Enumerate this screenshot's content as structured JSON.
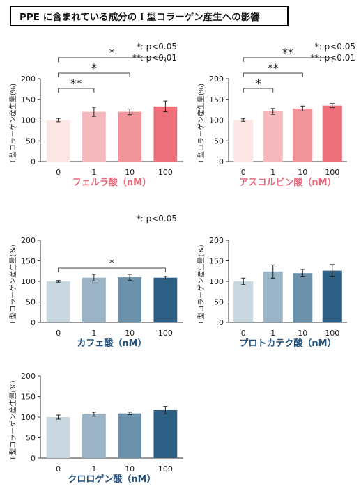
{
  "title": "PPE に含まれている成分の I 型コラーゲン産生への影響",
  "ylabel": "I 型コラーゲン産生量(%)",
  "chart_data": [
    {
      "type": "bar",
      "name": "chart-ferulic",
      "xlabel": "フェルラ酸（nM）",
      "categories": [
        "0",
        "1",
        "10",
        "100"
      ],
      "values": [
        100,
        120,
        120,
        133
      ],
      "errors": [
        4,
        11,
        7,
        13
      ],
      "ylim": [
        0,
        200
      ],
      "yticks": [
        0,
        50,
        100,
        150,
        200
      ],
      "colors": [
        "#fce6e6",
        "#f5b8bc",
        "#f0949a",
        "#ec6f79"
      ],
      "title_color": "#e8677a",
      "legend": [
        "*: p<0.05",
        "**: p<0.01"
      ],
      "brackets": [
        {
          "from": 0,
          "to": 1,
          "label": "**"
        },
        {
          "from": 0,
          "to": 2,
          "label": "*"
        },
        {
          "from": 0,
          "to": 3,
          "label": "*"
        }
      ]
    },
    {
      "type": "bar",
      "name": "chart-ascorbyl",
      "xlabel": "アスコルビン酸（nM）",
      "categories": [
        "0",
        "1",
        "10",
        "100"
      ],
      "values": [
        100,
        121,
        128,
        135
      ],
      "errors": [
        3,
        7,
        6,
        5
      ],
      "ylim": [
        0,
        200
      ],
      "yticks": [
        0,
        50,
        100,
        150,
        200
      ],
      "colors": [
        "#fce6e6",
        "#f5b8bc",
        "#f0949a",
        "#ec6f79"
      ],
      "title_color": "#e8677a",
      "legend": [
        "*: p<0.05",
        "**: p<0.01"
      ],
      "brackets": [
        {
          "from": 0,
          "to": 1,
          "label": "*"
        },
        {
          "from": 0,
          "to": 2,
          "label": "**"
        },
        {
          "from": 0,
          "to": 3,
          "label": "**"
        }
      ]
    },
    {
      "type": "bar",
      "name": "chart-caffeic",
      "xlabel": "カフェ酸（nM）",
      "categories": [
        "0",
        "1",
        "10",
        "100"
      ],
      "values": [
        100,
        109,
        110,
        109
      ],
      "errors": [
        2,
        8,
        7,
        3
      ],
      "ylim": [
        0,
        200
      ],
      "yticks": [
        0,
        50,
        100,
        150,
        200
      ],
      "colors": [
        "#c9d7e1",
        "#9ab3c5",
        "#6b91ab",
        "#2d5f85"
      ],
      "title_color": "#23507a",
      "legend": [
        "*: p<0.05"
      ],
      "brackets": [
        {
          "from": 0,
          "to": 3,
          "label": "*"
        }
      ]
    },
    {
      "type": "bar",
      "name": "chart-protocatechuic",
      "xlabel": "プロトカテク酸（nM）",
      "categories": [
        "0",
        "1",
        "10",
        "100"
      ],
      "values": [
        100,
        124,
        120,
        126
      ],
      "errors": [
        8,
        16,
        9,
        15
      ],
      "ylim": [
        0,
        200
      ],
      "yticks": [
        0,
        50,
        100,
        150,
        200
      ],
      "colors": [
        "#c9d7e1",
        "#9ab3c5",
        "#6b91ab",
        "#2d5f85"
      ],
      "title_color": "#23507a",
      "legend": [],
      "brackets": []
    },
    {
      "type": "bar",
      "name": "chart-chlorogenic",
      "xlabel": "クロロゲン酸（nM）",
      "categories": [
        "0",
        "1",
        "10",
        "100"
      ],
      "values": [
        100,
        107,
        109,
        117
      ],
      "errors": [
        5,
        5,
        3,
        9
      ],
      "ylim": [
        0,
        200
      ],
      "yticks": [
        0,
        50,
        100,
        150,
        200
      ],
      "colors": [
        "#c9d7e1",
        "#9ab3c5",
        "#6b91ab",
        "#2d5f85"
      ],
      "title_color": "#23507a",
      "legend": [],
      "brackets": []
    }
  ]
}
